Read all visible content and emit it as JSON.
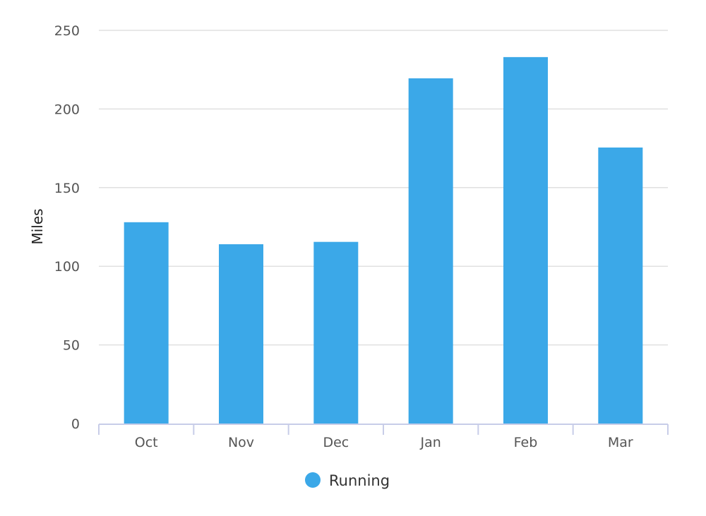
{
  "chart_data": {
    "type": "bar",
    "categories": [
      "Oct",
      "Nov",
      "Dec",
      "Jan",
      "Feb",
      "Mar"
    ],
    "series": [
      {
        "name": "Running",
        "color": "#3ba8e8",
        "values": [
          128,
          114,
          115.5,
          219.5,
          233,
          175.5
        ]
      }
    ],
    "xlabel": "",
    "ylabel": "Miles",
    "ylim": [
      0,
      250
    ],
    "yticks": [
      0,
      50,
      100,
      150,
      200,
      250
    ],
    "grid": true,
    "legend_position": "bottom-center"
  }
}
